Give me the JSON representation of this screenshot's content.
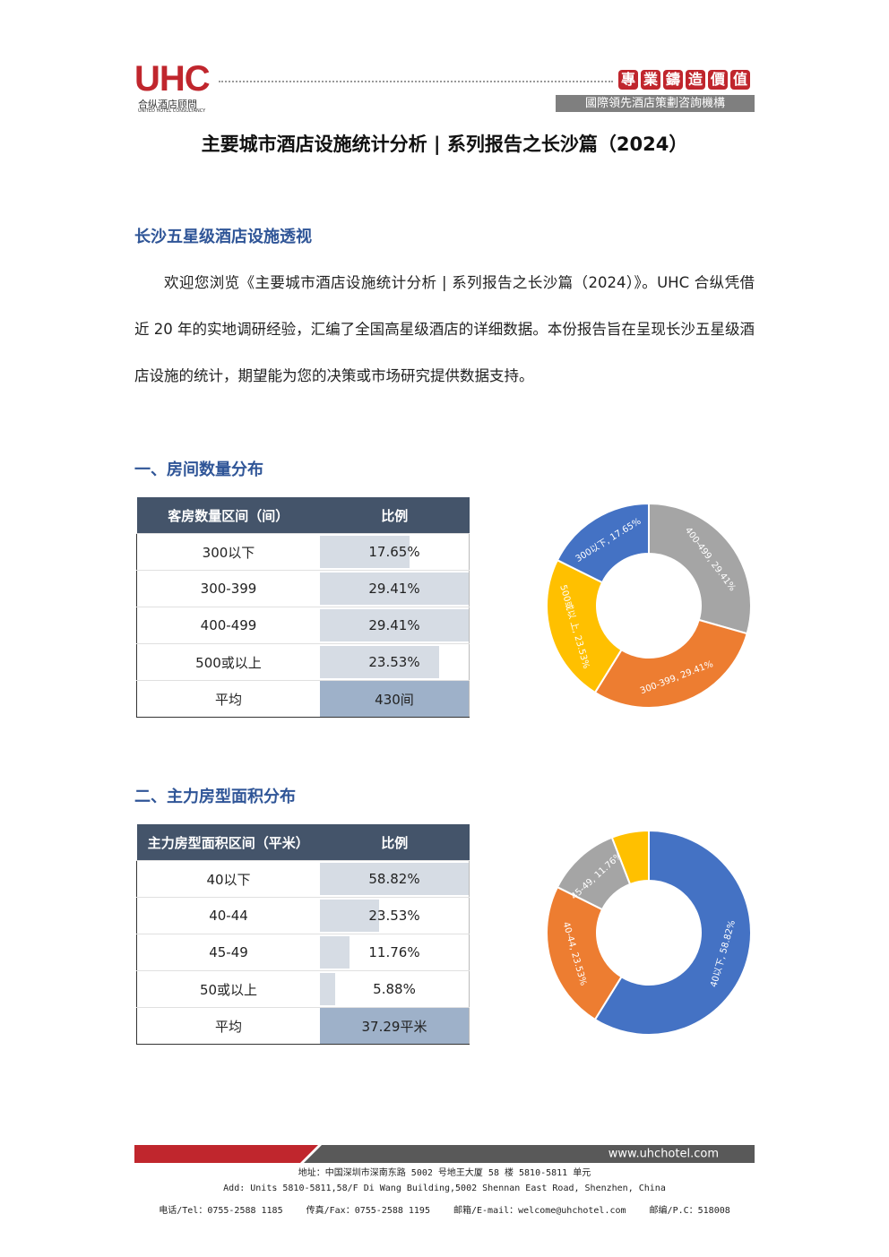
{
  "header": {
    "logo": "UHC",
    "logo_cn": "合纵酒店顾問",
    "logo_en": "UNITED HOTEL CONSULTANCY",
    "slogan": "專業鑄造價值",
    "tagline": "國際領先酒店策劃咨詢機構"
  },
  "title": "主要城市酒店设施统计分析 | 系列报告之长沙篇（2024）",
  "intro": {
    "heading": "长沙五星级酒店设施透视",
    "paragraph": "欢迎您浏览《主要城市酒店设施统计分析 | 系列报告之长沙篇（2024）》。UHC 合纵凭借近 20 年的实地调研经验，汇编了全国高星级酒店的详细数据。本份报告旨在呈现长沙五星级酒店设施的统计，期望能为您的决策或市场研究提供数据支持。"
  },
  "sections": [
    {
      "heading": "一、房间数量分布",
      "table": {
        "columns": [
          "客房数量区间（间）",
          "比例"
        ],
        "rows": [
          {
            "label": "300以下",
            "value": 17.65,
            "value_label": "17.65%"
          },
          {
            "label": "300-399",
            "value": 29.41,
            "value_label": "29.41%"
          },
          {
            "label": "400-499",
            "value": 29.41,
            "value_label": "29.41%"
          },
          {
            "label": "500或以上",
            "value": 23.53,
            "value_label": "23.53%"
          }
        ],
        "average": {
          "label": "平均",
          "value": "430间"
        }
      },
      "chart": {
        "type": "donut",
        "categories": [
          "400-499",
          "300-399",
          "500或以上",
          "300以下"
        ],
        "values": [
          29.41,
          29.41,
          23.53,
          17.65
        ],
        "labels": [
          "400-499, 29.41%",
          "300-399, 29.41%",
          "500或以 上, 23.53%",
          "300以下, 17.65%"
        ],
        "colors": [
          "#a5a5a5",
          "#ed7d31",
          "#ffc000",
          "#4472c4"
        ]
      }
    },
    {
      "heading": "二、主力房型面积分布",
      "table": {
        "columns": [
          "主力房型面积区间（平米）",
          "比例"
        ],
        "rows": [
          {
            "label": "40以下",
            "value": 58.82,
            "value_label": "58.82%"
          },
          {
            "label": "40-44",
            "value": 23.53,
            "value_label": "23.53%"
          },
          {
            "label": "45-49",
            "value": 11.76,
            "value_label": "11.76%"
          },
          {
            "label": "50或以上",
            "value": 5.88,
            "value_label": "5.88%"
          }
        ],
        "average": {
          "label": "平均",
          "value": "37.29平米"
        }
      },
      "chart": {
        "type": "donut",
        "categories": [
          "40以下",
          "40-44",
          "45-49",
          "50或以上"
        ],
        "values": [
          58.82,
          23.53,
          11.76,
          5.88
        ],
        "labels": [
          "40以下, 58.82%",
          "40-44, 23.53%",
          "45-49, 11.76%",
          null
        ],
        "colors": [
          "#4472c4",
          "#ed7d31",
          "#a5a5a5",
          "#ffc000"
        ]
      }
    }
  ],
  "footer": {
    "url": "www.uhchotel.com",
    "address_cn": "地址：中国深圳市深南东路 5002 号地王大厦 58 楼 5810-5811 单元",
    "address_en": "Add: Units 5810-5811,58/F Di Wang Building,5002 Shennan East Road, Shenzhen, China",
    "contacts": [
      "电话/Tel：0755-2588 1185",
      "传真/Fax：0755-2588 1195",
      "邮箱/E-mail：welcome@uhchotel.com",
      "邮编/P.C：518008"
    ]
  }
}
